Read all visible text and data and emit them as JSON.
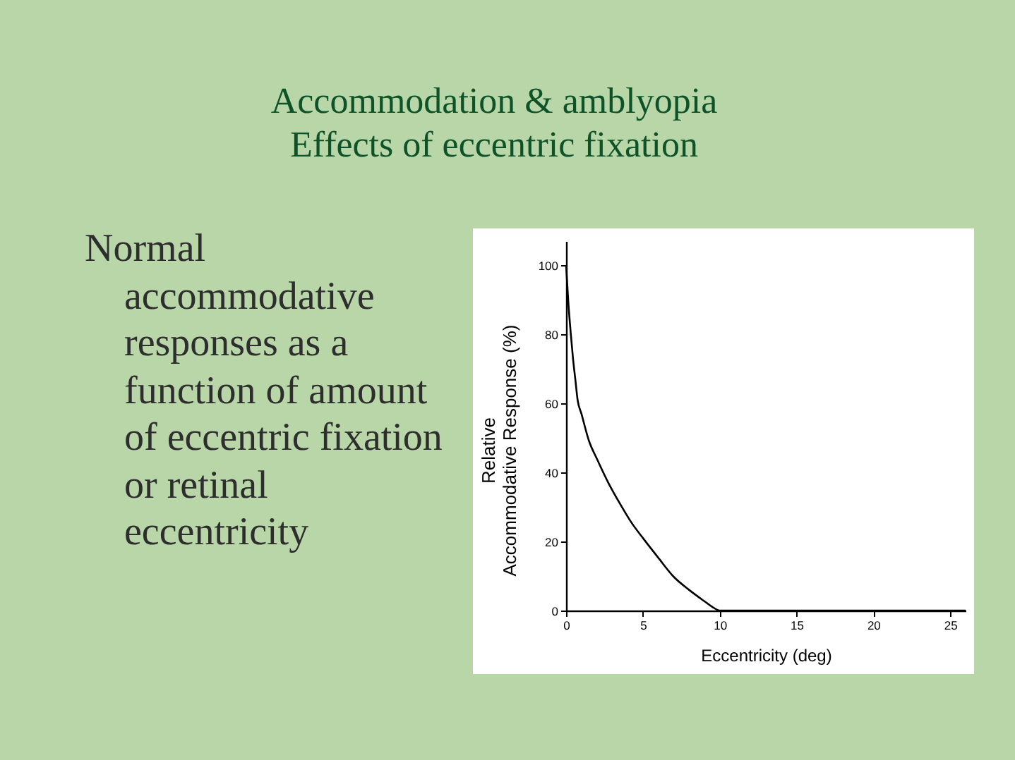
{
  "chart_data": {
    "type": "line",
    "title": "Accommodation & amblyopia",
    "subtitle": "Effects of eccentric fixation",
    "annotations": [
      "Normal accommodative responses as a function of amount of eccentric fixation or retinal eccentricity"
    ],
    "xlabel": "Eccentricity (deg)",
    "ylabel": "Relative\nAccommodative Response (%)",
    "x": [
      0,
      0.15,
      0.3,
      0.45,
      0.6,
      0.75,
      1,
      1.5,
      2,
      2.75,
      3.5,
      4.25,
      5,
      6,
      7,
      8,
      9,
      9.5,
      10,
      26
    ],
    "values": [
      100,
      89,
      80.5,
      73,
      67,
      61,
      57,
      49,
      44,
      37,
      31,
      25.5,
      21,
      15.3,
      9.8,
      6,
      2.7,
      1.1,
      0,
      0
    ],
    "color": "#000000",
    "xlim": [
      0,
      26
    ],
    "xticks": [
      0,
      5,
      10,
      15,
      20,
      25
    ],
    "ylim": [
      0,
      107
    ],
    "yticks": [
      0,
      20,
      40,
      60,
      80,
      100
    ]
  }
}
